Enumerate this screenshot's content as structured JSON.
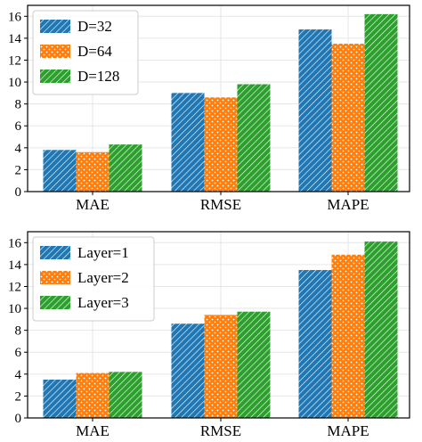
{
  "chart_data": [
    {
      "type": "bar",
      "categories": [
        "MAE",
        "RMSE",
        "MAPE"
      ],
      "series": [
        {
          "name": "D=32",
          "values": [
            3.8,
            9.0,
            14.8
          ],
          "color": "#1f77b4",
          "pattern": "diagonal-hatch"
        },
        {
          "name": "D=64",
          "values": [
            3.6,
            8.6,
            13.5
          ],
          "color": "#ff7f0e",
          "pattern": "dots"
        },
        {
          "name": "D=128",
          "values": [
            4.3,
            9.8,
            16.2
          ],
          "color": "#2ca02c",
          "pattern": "diagonal-hatch"
        }
      ],
      "ylim": [
        0,
        17
      ],
      "yticks": [
        "0",
        "2",
        "4",
        "6",
        "8",
        "10",
        "12",
        "14",
        "16"
      ],
      "grid": true,
      "legend": "top-left"
    },
    {
      "type": "bar",
      "categories": [
        "MAE",
        "RMSE",
        "MAPE"
      ],
      "series": [
        {
          "name": "Layer=1",
          "values": [
            3.5,
            8.6,
            13.5
          ],
          "color": "#1f77b4",
          "pattern": "diagonal-hatch"
        },
        {
          "name": "Layer=2",
          "values": [
            4.1,
            9.4,
            14.9
          ],
          "color": "#ff7f0e",
          "pattern": "dots"
        },
        {
          "name": "Layer=3",
          "values": [
            4.2,
            9.7,
            16.1
          ],
          "color": "#2ca02c",
          "pattern": "diagonal-hatch"
        }
      ],
      "ylim": [
        0,
        17
      ],
      "yticks": [
        "0",
        "2",
        "4",
        "6",
        "8",
        "10",
        "12",
        "14",
        "16"
      ],
      "grid": true,
      "legend": "top-left"
    }
  ]
}
